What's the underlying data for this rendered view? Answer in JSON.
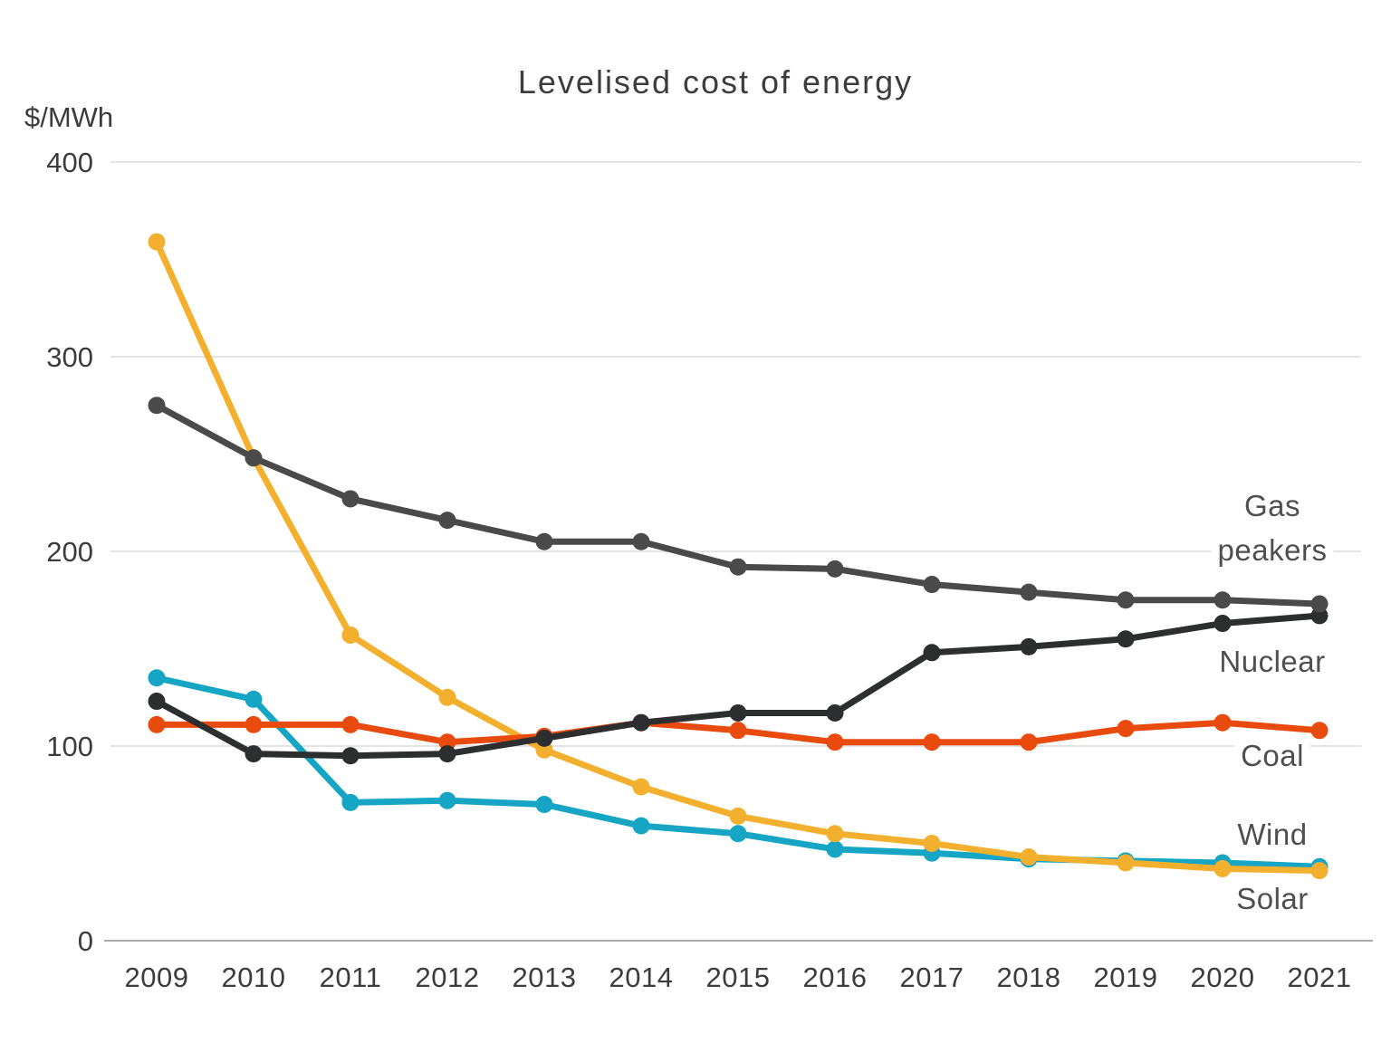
{
  "title": "Levelised cost of energy",
  "chart_data": {
    "type": "line",
    "title": "Levelised cost of energy",
    "ylabel": "$/MWh",
    "xlabel": "",
    "ylim": [
      0,
      400
    ],
    "yticks": [
      0,
      100,
      200,
      300,
      400
    ],
    "grid": "horizontal-only",
    "legend_position": "inline-right-of-lines",
    "x": [
      "2009",
      "2010",
      "2011",
      "2012",
      "2013",
      "2014",
      "2015",
      "2016",
      "2017",
      "2018",
      "2019",
      "2020",
      "2021"
    ],
    "series": [
      {
        "name": "Gas peakers",
        "label_lines": [
          "Gas",
          "peakers"
        ],
        "color": "#4A4A4B",
        "values": [
          275,
          248,
          227,
          216,
          205,
          205,
          192,
          191,
          183,
          179,
          175,
          175,
          173
        ]
      },
      {
        "name": "Nuclear",
        "label_lines": [
          "Nuclear"
        ],
        "color": "#2D2E2F",
        "values": [
          123,
          96,
          95,
          96,
          104,
          112,
          117,
          117,
          148,
          151,
          155,
          163,
          167
        ]
      },
      {
        "name": "Coal",
        "label_lines": [
          "Coal"
        ],
        "color": "#E94A0D",
        "values": [
          111,
          111,
          111,
          102,
          105,
          112,
          108,
          102,
          102,
          102,
          109,
          112,
          108
        ]
      },
      {
        "name": "Wind",
        "label_lines": [
          "Wind"
        ],
        "color": "#16A5C4",
        "values": [
          135,
          124,
          71,
          72,
          70,
          59,
          55,
          47,
          45,
          42,
          41,
          40,
          38
        ]
      },
      {
        "name": "Solar",
        "label_lines": [
          "Solar"
        ],
        "color": "#F3B02F",
        "values": [
          359,
          248,
          157,
          125,
          98,
          79,
          64,
          55,
          50,
          43,
          40,
          37,
          36
        ]
      }
    ]
  },
  "colors": {
    "background": "#FFFFFF",
    "gridline": "#DCDCDC",
    "baseline": "#ABABAB",
    "tick_text": "#3C3C3C",
    "series_label_text": "#4F4F4F",
    "title_text": "#3D3D3D"
  }
}
